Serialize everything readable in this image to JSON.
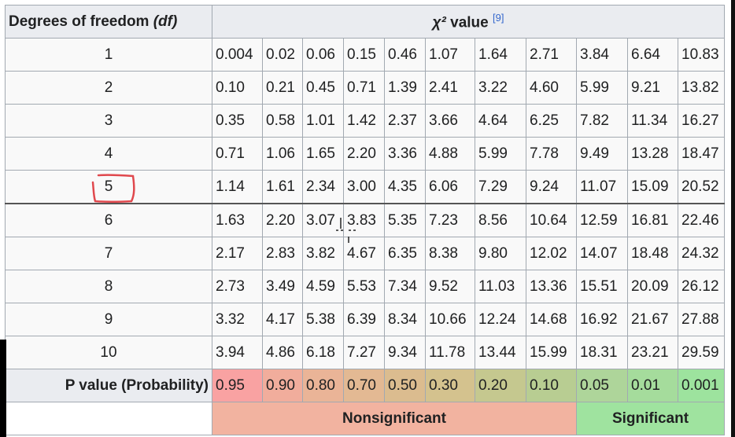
{
  "table": {
    "header": {
      "df_label": "Degrees of freedom",
      "df_em": "(df)",
      "chi_symbol": "χ²",
      "chi_label": "value",
      "chi_ref": "[9]"
    },
    "rows": [
      {
        "df": "1",
        "values": [
          "0.004",
          "0.02",
          "0.06",
          "0.15",
          "0.46",
          "1.07",
          "1.64",
          "2.71",
          "3.84",
          "6.64",
          "10.83"
        ]
      },
      {
        "df": "2",
        "values": [
          "0.10",
          "0.21",
          "0.45",
          "0.71",
          "1.39",
          "2.41",
          "3.22",
          "4.60",
          "5.99",
          "9.21",
          "13.82"
        ]
      },
      {
        "df": "3",
        "values": [
          "0.35",
          "0.58",
          "1.01",
          "1.42",
          "2.37",
          "3.66",
          "4.64",
          "6.25",
          "7.82",
          "11.34",
          "16.27"
        ]
      },
      {
        "df": "4",
        "values": [
          "0.71",
          "1.06",
          "1.65",
          "2.20",
          "3.36",
          "4.88",
          "5.99",
          "7.78",
          "9.49",
          "13.28",
          "18.47"
        ]
      },
      {
        "df": "5",
        "values": [
          "1.14",
          "1.61",
          "2.34",
          "3.00",
          "4.35",
          "6.06",
          "7.29",
          "9.24",
          "11.07",
          "15.09",
          "20.52"
        ]
      },
      {
        "df": "6",
        "values": [
          "1.63",
          "2.20",
          "3.07",
          "3.83",
          "5.35",
          "7.23",
          "8.56",
          "10.64",
          "12.59",
          "16.81",
          "22.46"
        ]
      },
      {
        "df": "7",
        "values": [
          "2.17",
          "2.83",
          "3.82",
          "4.67",
          "6.35",
          "8.38",
          "9.80",
          "12.02",
          "14.07",
          "18.48",
          "24.32"
        ]
      },
      {
        "df": "8",
        "values": [
          "2.73",
          "3.49",
          "4.59",
          "5.53",
          "7.34",
          "9.52",
          "11.03",
          "13.36",
          "15.51",
          "20.09",
          "26.12"
        ]
      },
      {
        "df": "9",
        "values": [
          "3.32",
          "4.17",
          "5.38",
          "6.39",
          "8.34",
          "10.66",
          "12.24",
          "14.68",
          "16.92",
          "21.67",
          "27.88"
        ]
      },
      {
        "df": "10",
        "values": [
          "3.94",
          "4.86",
          "6.18",
          "7.27",
          "9.34",
          "11.78",
          "13.44",
          "15.99",
          "18.31",
          "23.21",
          "29.59"
        ]
      }
    ],
    "p_label": "P value (Probability)",
    "p_values": [
      "0.95",
      "0.90",
      "0.80",
      "0.70",
      "0.50",
      "0.30",
      "0.20",
      "0.10",
      "0.05",
      "0.01",
      "0.001"
    ],
    "p_colors": [
      "#f9a2a2",
      "#f1ad9c",
      "#eab497",
      "#e3b993",
      "#dbbc8f",
      "#d4c28e",
      "#c5c88f",
      "#b8cd92",
      "#aed59a",
      "#a5dc9c",
      "#9de39e"
    ],
    "nonsignificant_label": "Nonsignificant",
    "significant_label": "Significant",
    "nonsignificant_color": "#f2b3a0",
    "significant_color": "#9fe39f",
    "highlight_color": "#e0484d"
  }
}
